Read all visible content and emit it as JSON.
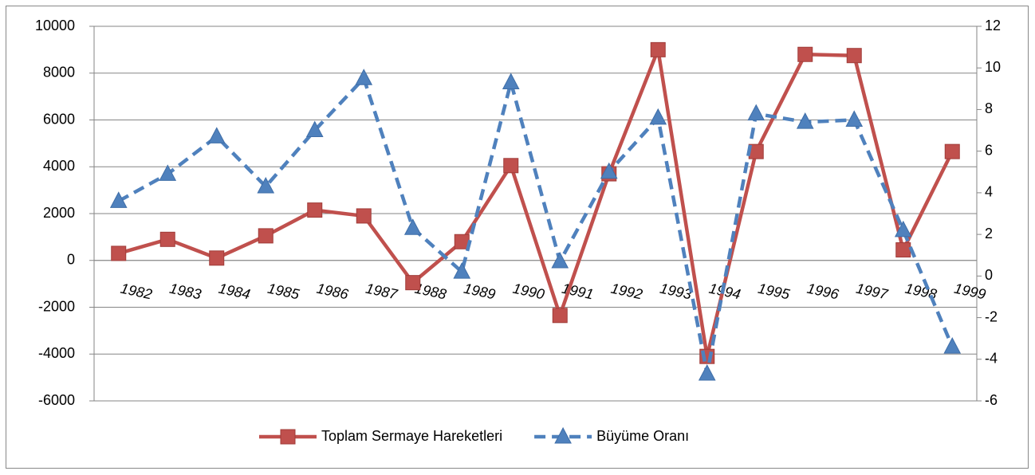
{
  "chart_data": {
    "type": "line",
    "categories": [
      "1982",
      "1983",
      "1984",
      "1985",
      "1986",
      "1987",
      "1988",
      "1989",
      "1990",
      "1991",
      "1992",
      "1993",
      "1994",
      "1995",
      "1996",
      "1997",
      "1998",
      "1999"
    ],
    "series": [
      {
        "name": "Toplam Sermaye Hareketleri",
        "color": "#c0504d",
        "marker": "square",
        "dashed": false,
        "values": [
          300,
          900,
          100,
          1050,
          2150,
          1900,
          -950,
          800,
          4050,
          -2350,
          3700,
          9000,
          -4100,
          4650,
          8800,
          8750,
          450,
          4650
        ]
      },
      {
        "name": "Büyüme Oranı",
        "color": "#4f81bd",
        "marker": "triangle",
        "dashed": true,
        "axis": "y2",
        "values": [
          3.6,
          4.9,
          6.7,
          4.3,
          7.0,
          9.5,
          2.3,
          0.2,
          9.3,
          0.7,
          5.0,
          7.6,
          -4.7,
          7.8,
          7.4,
          7.5,
          2.2,
          -3.4
        ]
      }
    ],
    "ylim": [
      -6000,
      10000
    ],
    "yticks": [
      -6000,
      -4000,
      -2000,
      0,
      2000,
      4000,
      6000,
      8000,
      10000
    ],
    "y2lim": [
      -6,
      12
    ],
    "y2ticks": [
      -6,
      -4,
      -2,
      0,
      2,
      4,
      6,
      8,
      10,
      12
    ],
    "grid": true,
    "legend": "bottom"
  }
}
